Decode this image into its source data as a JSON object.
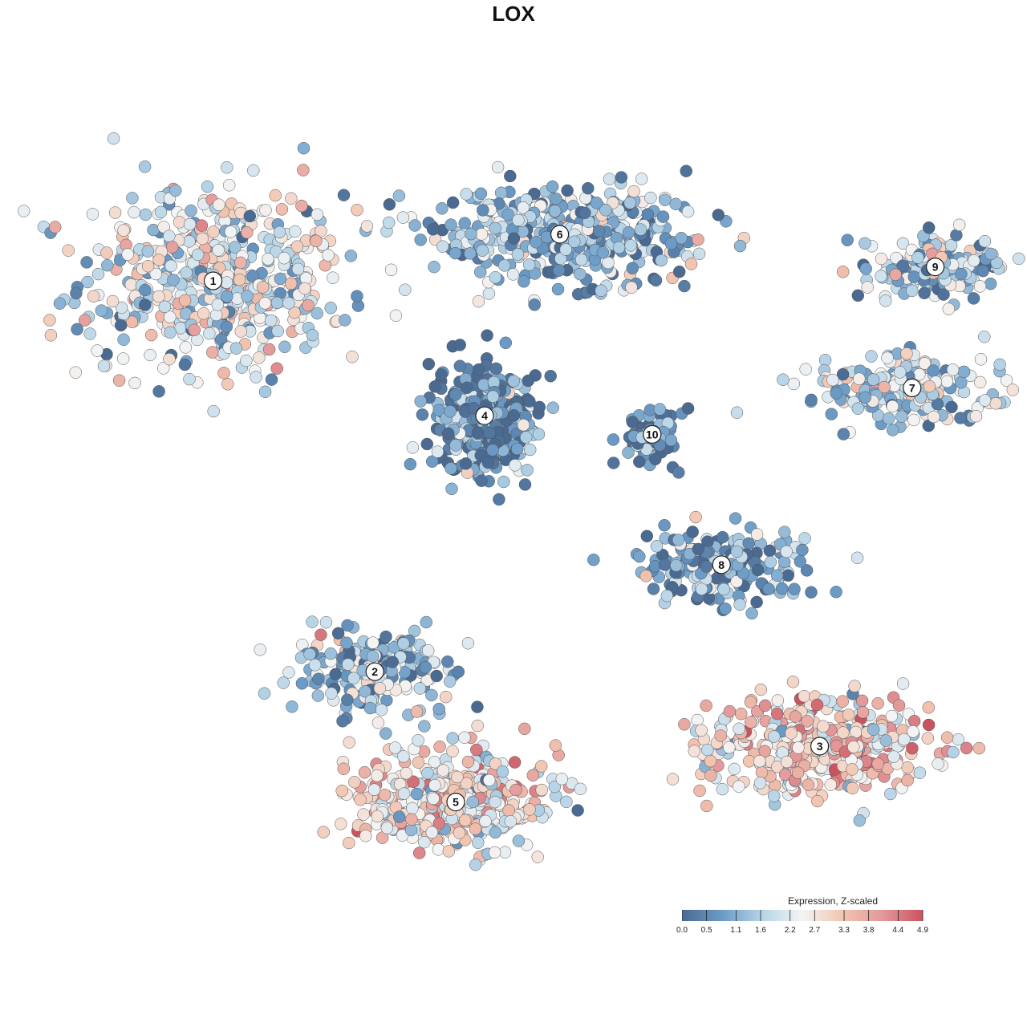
{
  "chart_data": {
    "type": "scatter",
    "title": "LOX",
    "xlabel": "",
    "ylabel": "",
    "legend": {
      "title": "Expression, Z-scaled",
      "placement": "bottom-right",
      "ticks": [
        "0.0",
        "0.5",
        "1.1",
        "1.6",
        "2.2",
        "2.7",
        "3.3",
        "3.8",
        "4.4",
        "4.9"
      ],
      "range": [
        0.0,
        4.9
      ],
      "colors": [
        "#4a6a92",
        "#6b9bc6",
        "#b6d4e7",
        "#f4f4f4",
        "#f2c5b0",
        "#e3989a",
        "#c9545f"
      ]
    },
    "grid": false,
    "clusters": [
      {
        "label": "1",
        "x": -5.2,
        "y": 5.0,
        "mean_expr": 2.1
      },
      {
        "label": "2",
        "x": -2.4,
        "y": -3.4,
        "mean_expr": 1.4
      },
      {
        "label": "3",
        "x": 5.3,
        "y": -5.0,
        "mean_expr": 3.0
      },
      {
        "label": "4",
        "x": -0.5,
        "y": 2.1,
        "mean_expr": 0.5
      },
      {
        "label": "5",
        "x": -1.0,
        "y": -6.2,
        "mean_expr": 2.7
      },
      {
        "label": "6",
        "x": 0.8,
        "y": 6.0,
        "mean_expr": 1.2
      },
      {
        "label": "7",
        "x": 6.9,
        "y": 2.7,
        "mean_expr": 1.6
      },
      {
        "label": "8",
        "x": 3.6,
        "y": -1.1,
        "mean_expr": 0.9
      },
      {
        "label": "9",
        "x": 7.3,
        "y": 5.3,
        "mean_expr": 1.7
      },
      {
        "label": "10",
        "x": 2.4,
        "y": 1.7,
        "mean_expr": 0.5
      }
    ]
  }
}
